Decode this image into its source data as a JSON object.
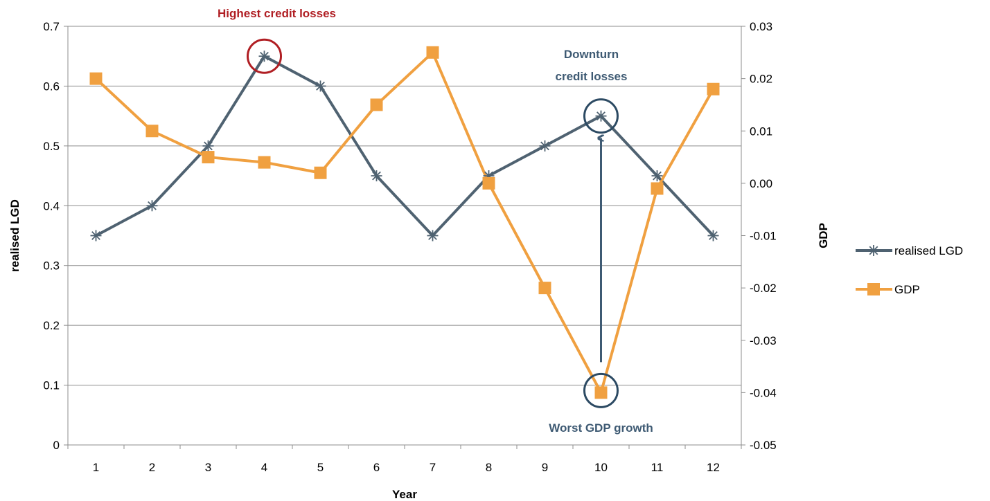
{
  "chart_data": {
    "type": "line",
    "xlabel": "Year",
    "y_left_label": "realised LGD",
    "y_right_label": "GDP",
    "x": [
      1,
      2,
      3,
      4,
      5,
      6,
      7,
      8,
      9,
      10,
      11,
      12
    ],
    "x_tick_labels": [
      "1",
      "2",
      "3",
      "4",
      "5",
      "6",
      "7",
      "8",
      "9",
      "10",
      "11",
      "12"
    ],
    "y_left_lim": [
      0,
      0.7
    ],
    "y_left_ticks": [
      0,
      0.1,
      0.2,
      0.3,
      0.4,
      0.5,
      0.6,
      0.7
    ],
    "y_left_tick_labels": [
      "0",
      "0.1",
      "0.2",
      "0.3",
      "0.4",
      "0.5",
      "0.6",
      "0.7"
    ],
    "y_right_lim": [
      -0.05,
      0.03
    ],
    "y_right_ticks": [
      -0.05,
      -0.04,
      -0.03,
      -0.02,
      -0.01,
      0.0,
      0.01,
      0.02,
      0.03
    ],
    "y_right_tick_labels": [
      "-0.05",
      "-0.04",
      "-0.03",
      "-0.02",
      "-0.01",
      "0.00",
      "0.01",
      "0.02",
      "0.03"
    ],
    "grid": "horizontal",
    "legend_position": "right",
    "series": [
      {
        "name": "realised LGD",
        "axis": "left",
        "marker": "asterisk",
        "color": "#4f6271",
        "values": [
          0.35,
          0.4,
          0.5,
          0.65,
          0.6,
          0.45,
          0.35,
          0.45,
          0.5,
          0.55,
          0.45,
          0.35
        ]
      },
      {
        "name": "GDP",
        "axis": "right",
        "marker": "square",
        "color": "#f0a040",
        "values": [
          0.02,
          0.01,
          0.005,
          0.004,
          0.002,
          0.015,
          0.025,
          0.0,
          -0.02,
          -0.04,
          -0.001,
          0.018
        ]
      }
    ],
    "annotations": [
      {
        "text": "Highest credit losses",
        "color": "#b01e23",
        "series": "realised LGD",
        "x": 4
      },
      {
        "lines": [
          "Downturn",
          "credit losses"
        ],
        "color": "#3e5a73",
        "series": "realised LGD",
        "x": 10
      },
      {
        "text": "Worst GDP growth",
        "color": "#3e5a73",
        "series": "GDP",
        "x": 10
      }
    ]
  }
}
